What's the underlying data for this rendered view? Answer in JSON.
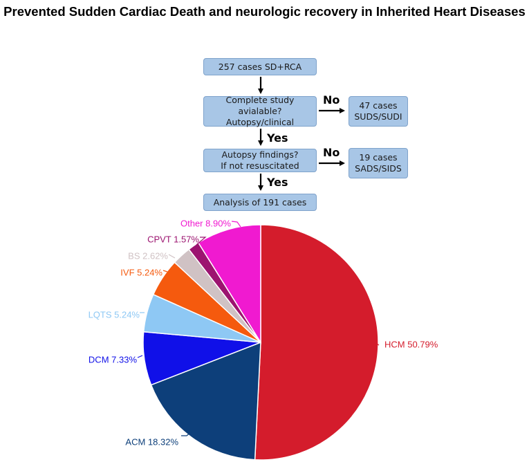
{
  "title": "Prevented Sudden Cardiac Death and neurologic recovery in Inherited Heart Diseases",
  "flow": {
    "start": "257 cases SD+RCA",
    "q1": [
      "Complete study avialable?",
      "Autopsy/clinical"
    ],
    "no1": "No",
    "out1": [
      "47 cases",
      "SUDS/SUDI"
    ],
    "yes1": "Yes",
    "q2": [
      "Autopsy findings?",
      "If not resuscitated"
    ],
    "no2": "No",
    "out2": [
      "19 cases",
      "SADS/SIDS"
    ],
    "yes2": "Yes",
    "end": "Analysis of 191 cases"
  },
  "chart_data": {
    "type": "pie",
    "slices": [
      {
        "label": "HCM",
        "value": 50.79,
        "text": "HCM 50.79%",
        "color": "#d41c2c"
      },
      {
        "label": "ACM",
        "value": 18.32,
        "text": "ACM 18.32%",
        "color": "#0d3f7a"
      },
      {
        "label": "DCM",
        "value": 7.33,
        "text": "DCM 7.33%",
        "color": "#1010e8"
      },
      {
        "label": "LQTS",
        "value": 5.24,
        "text": "LQTS 5.24%",
        "color": "#8ec8f4"
      },
      {
        "label": "IVF",
        "value": 5.24,
        "text": "IVF 5.24%",
        "color": "#f55a0e"
      },
      {
        "label": "BS",
        "value": 2.62,
        "text": "BS 2.62%",
        "color": "#d0c2c4"
      },
      {
        "label": "CPVT",
        "value": 1.57,
        "text": "CPVT 1.57%",
        "color": "#9c1470"
      },
      {
        "label": "Other",
        "value": 8.9,
        "text": "Other 8.90%",
        "color": "#f01ad0"
      }
    ]
  }
}
